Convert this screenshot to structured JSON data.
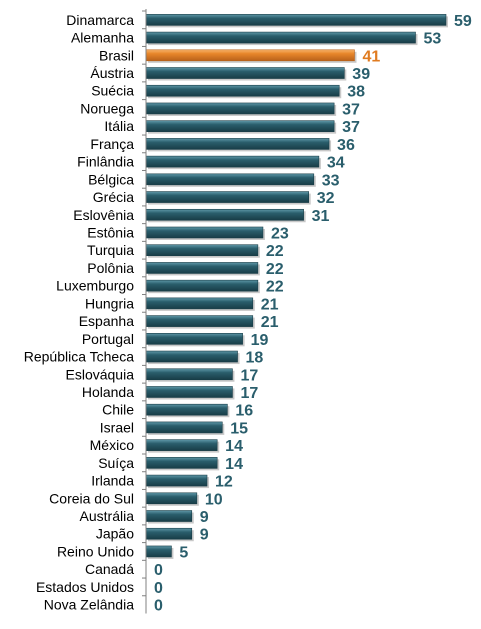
{
  "chart_data": {
    "type": "bar",
    "orientation": "horizontal",
    "categories": [
      "Dinamarca",
      "Alemanha",
      "Brasil",
      "Áustria",
      "Suécia",
      "Noruega",
      "Itália",
      "França",
      "Finlândia",
      "Bélgica",
      "Grécia",
      "Eslovênia",
      "Estônia",
      "Turquia",
      "Polônia",
      "Luxemburgo",
      "Hungria",
      "Espanha",
      "Portugal",
      "República Tcheca",
      "Eslováquia",
      "Holanda",
      "Chile",
      "Israel",
      "México",
      "Suíça",
      "Irlanda",
      "Coreia do Sul",
      "Austrália",
      "Japão",
      "Reino Unido",
      "Canadá",
      "Estados Unidos",
      "Nova Zelândia"
    ],
    "values": [
      59,
      53,
      41,
      39,
      38,
      37,
      37,
      36,
      34,
      33,
      32,
      31,
      23,
      22,
      22,
      22,
      21,
      21,
      19,
      18,
      17,
      17,
      16,
      15,
      14,
      14,
      12,
      10,
      9,
      9,
      5,
      0,
      0,
      0
    ],
    "value_labels": [
      "59",
      "53",
      "41",
      "39",
      "38",
      "37",
      "37",
      "36",
      "34",
      "33",
      "32",
      "31",
      "23",
      "22",
      "22",
      "22",
      "21",
      "21",
      "19",
      "18",
      "17",
      "17",
      "16",
      "15",
      "14",
      "14",
      "12",
      "10",
      "9",
      "9",
      "5",
      "0",
      "0",
      "0"
    ],
    "highlight_category": "Brasil",
    "xlim": [
      0,
      59
    ],
    "grid": false,
    "legend": "none",
    "colors": {
      "bar": "#2a5e6c",
      "bar_light": "#5f98a8",
      "bar_dark": "#183d47",
      "highlight_bar": "#e8862a",
      "highlight_light": "#f7b36a",
      "highlight_dark": "#b8621a",
      "value_label": "#2a5e6c",
      "highlight_label": "#e07b20",
      "axis": "#808080",
      "category_label": "#000000"
    }
  }
}
